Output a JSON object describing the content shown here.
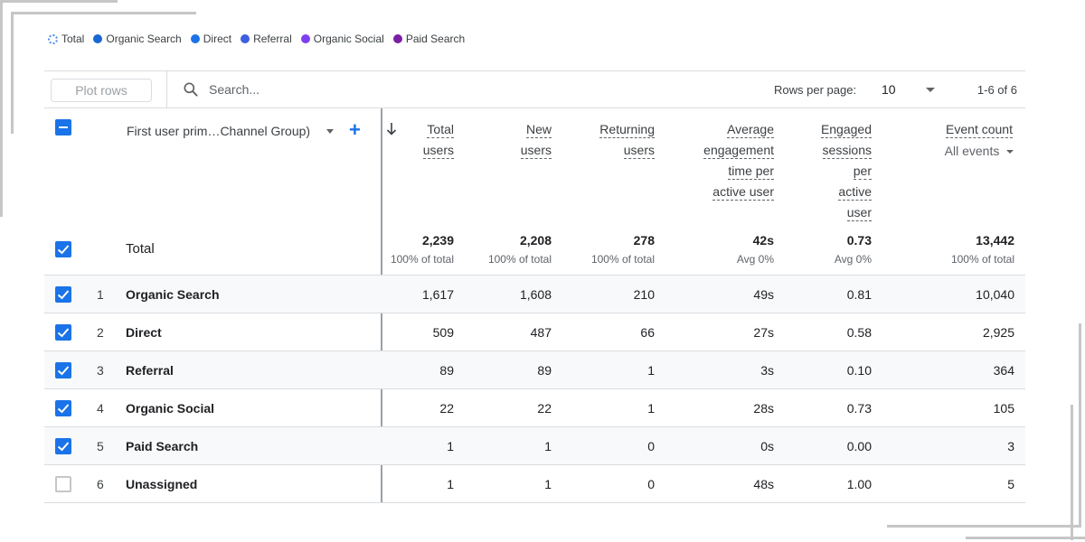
{
  "legend": [
    {
      "label": "Total",
      "color": "#4f8fe8",
      "style": "ring"
    },
    {
      "label": "Organic Search",
      "color": "#1967d2"
    },
    {
      "label": "Direct",
      "color": "#1a73e8"
    },
    {
      "label": "Referral",
      "color": "#3e5fe0"
    },
    {
      "label": "Organic Social",
      "color": "#7e3ff2"
    },
    {
      "label": "Paid Search",
      "color": "#7b1fa2"
    }
  ],
  "toolbar": {
    "plot_rows_label": "Plot rows",
    "search_placeholder": "Search...",
    "rows_per_page_label": "Rows per page:",
    "rows_per_page_value": "10",
    "pagination": "1-6 of 6"
  },
  "table": {
    "dimension_header": "First user prim…Channel Group)",
    "columns": [
      {
        "label_lines": [
          "Total",
          "users"
        ]
      },
      {
        "label_lines": [
          "New",
          "users"
        ]
      },
      {
        "label_lines": [
          "Returning",
          "users"
        ]
      },
      {
        "label_lines": [
          "Average",
          "engagement",
          "time per",
          "active user"
        ]
      },
      {
        "label_lines": [
          "Engaged",
          "sessions",
          "per",
          "active",
          "user"
        ]
      },
      {
        "label_lines": [
          "Event count"
        ],
        "sub": "All events"
      }
    ],
    "totals": {
      "label": "Total",
      "values": [
        "2,239",
        "2,208",
        "278",
        "42s",
        "0.73",
        "13,442"
      ],
      "subs": [
        "100% of total",
        "100% of total",
        "100% of total",
        "Avg 0%",
        "Avg 0%",
        "100% of total"
      ]
    },
    "rows": [
      {
        "index": "1",
        "name": "Organic Search",
        "checked": true,
        "values": [
          "1,617",
          "1,608",
          "210",
          "49s",
          "0.81",
          "10,040"
        ]
      },
      {
        "index": "2",
        "name": "Direct",
        "checked": true,
        "values": [
          "509",
          "487",
          "66",
          "27s",
          "0.58",
          "2,925"
        ]
      },
      {
        "index": "3",
        "name": "Referral",
        "checked": true,
        "values": [
          "89",
          "89",
          "1",
          "3s",
          "0.10",
          "364"
        ]
      },
      {
        "index": "4",
        "name": "Organic Social",
        "checked": true,
        "values": [
          "22",
          "22",
          "1",
          "28s",
          "0.73",
          "105"
        ]
      },
      {
        "index": "5",
        "name": "Paid Search",
        "checked": true,
        "values": [
          "1",
          "1",
          "0",
          "0s",
          "0.00",
          "3"
        ]
      },
      {
        "index": "6",
        "name": "Unassigned",
        "checked": false,
        "values": [
          "1",
          "1",
          "0",
          "48s",
          "1.00",
          "5"
        ]
      }
    ]
  }
}
